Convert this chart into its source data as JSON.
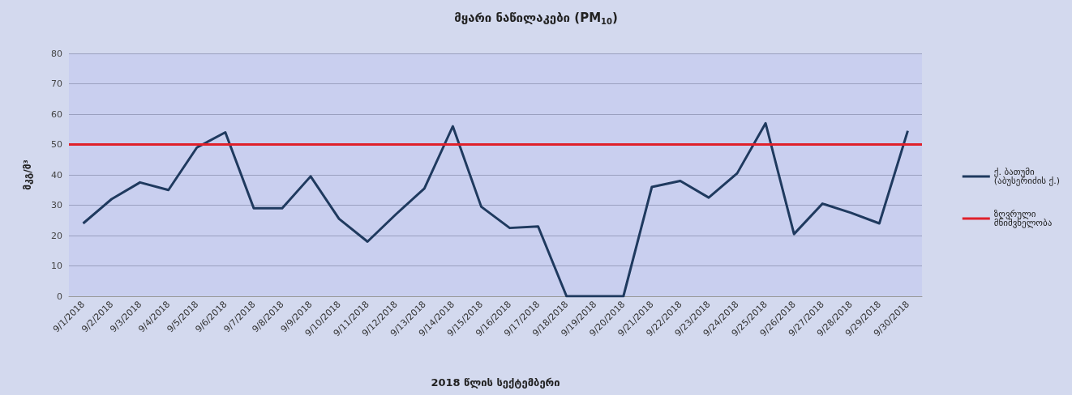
{
  "chart_data": {
    "type": "line",
    "title": "მყარი ნაწილაკები (PM$_{10}$)",
    "xlabel": "2018 წლის სექტემბერი",
    "ylabel": "მკგ/მ³",
    "categories": [
      "9/1/2018",
      "9/2/2018",
      "9/3/2018",
      "9/4/2018",
      "9/5/2018",
      "9/6/2018",
      "9/7/2018",
      "9/8/2018",
      "9/9/2018",
      "9/10/2018",
      "9/11/2018",
      "9/12/2018",
      "9/13/2018",
      "9/14/2018",
      "9/15/2018",
      "9/16/2018",
      "9/17/2018",
      "9/18/2018",
      "9/19/2018",
      "9/20/2018",
      "9/21/2018",
      "9/22/2018",
      "9/23/2018",
      "9/24/2018",
      "9/25/2018",
      "9/26/2018",
      "9/27/2018",
      "9/28/2018",
      "9/29/2018",
      "9/30/2018"
    ],
    "series": [
      {
        "name": "ქ. ბათუმი (აბუსერიძის ქ.)",
        "color": "#1f3a5f",
        "values": [
          24,
          32,
          37.5,
          35,
          49,
          54,
          29,
          29,
          39.5,
          25.5,
          18,
          27,
          35.5,
          56,
          29.5,
          22.5,
          23,
          0,
          0,
          0,
          36,
          38,
          32.5,
          40.5,
          57,
          20.5,
          30.5,
          27.5,
          24,
          54.5
        ]
      }
    ],
    "ref_lines": [
      {
        "axis": "y",
        "value": 50,
        "label": "ზღვრული მნიშვნელობა",
        "color": "#e0202a"
      }
    ],
    "ylim": [
      0,
      80
    ],
    "yticks": [
      0,
      10,
      20,
      30,
      40,
      50,
      60,
      70,
      80
    ],
    "grid": "y",
    "legend": "right",
    "marker": "none",
    "line_style": "solid"
  }
}
